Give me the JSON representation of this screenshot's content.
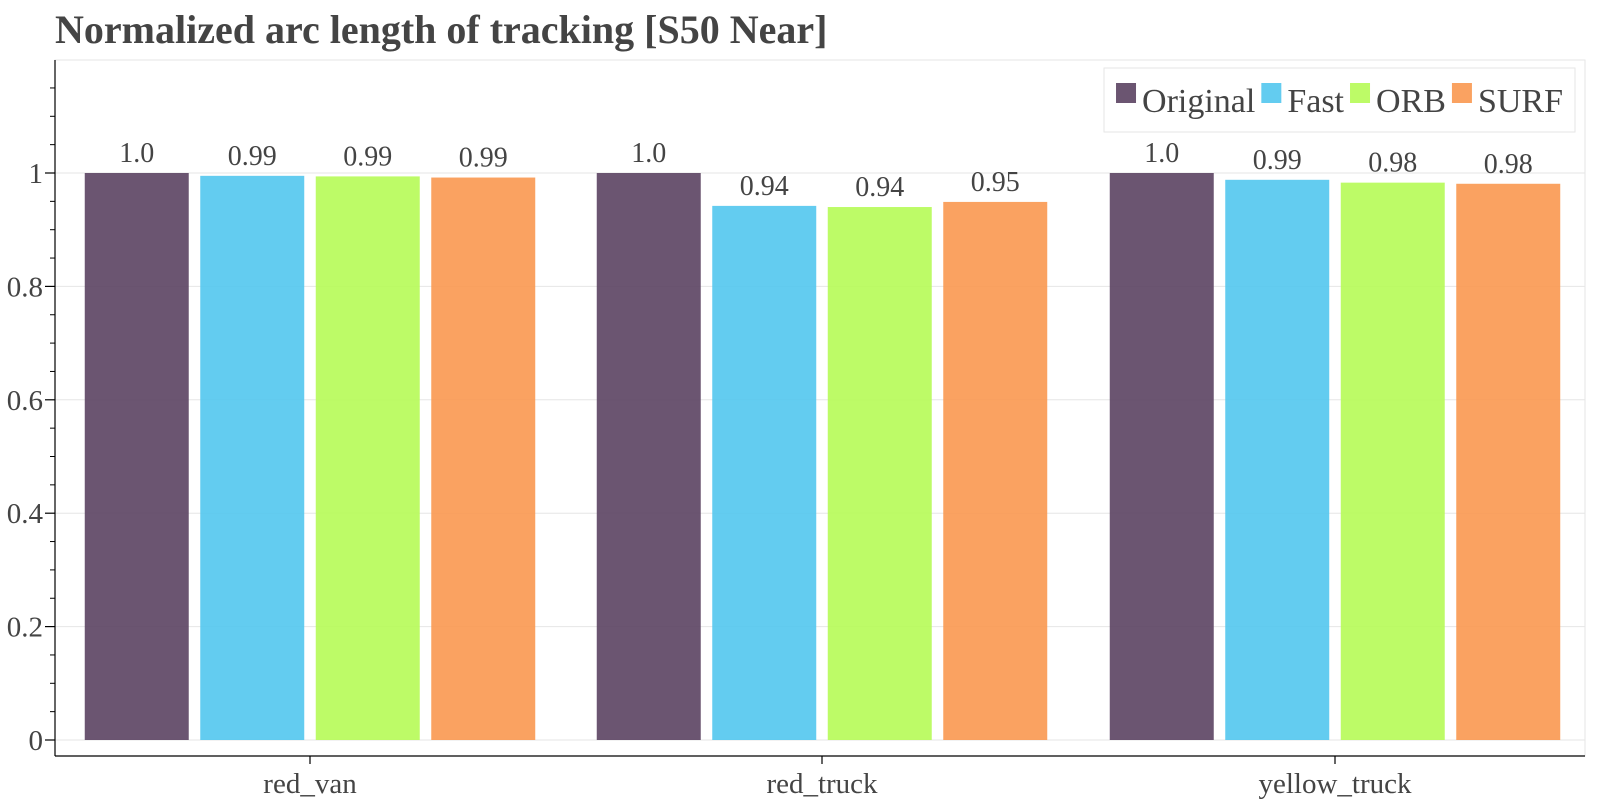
{
  "chart_data": {
    "type": "bar",
    "title": "Normalized arc length of tracking [S50 Near]",
    "xlabel": "",
    "ylabel": "",
    "categories": [
      "red_van",
      "red_truck",
      "yellow_truck"
    ],
    "series": [
      {
        "name": "Original",
        "color": "#5b4262",
        "values": [
          1.0,
          1.0,
          1.0
        ],
        "labels": [
          "1.0",
          "1.0",
          "1.0"
        ]
      },
      {
        "name": "Fast",
        "color": "#52c6ee",
        "values": [
          0.995,
          0.942,
          0.988
        ],
        "labels": [
          "0.99",
          "0.94",
          "0.99"
        ]
      },
      {
        "name": "ORB",
        "color": "#b6fb57",
        "values": [
          0.994,
          0.94,
          0.983
        ],
        "labels": [
          "0.99",
          "0.94",
          "0.98"
        ]
      },
      {
        "name": "SURF",
        "color": "#fa9850",
        "values": [
          0.992,
          0.949,
          0.981
        ],
        "labels": [
          "0.99",
          "0.95",
          "0.98"
        ]
      }
    ],
    "ylim": [
      0,
      1.2
    ],
    "yticks": [
      0,
      0.2,
      0.4,
      0.6,
      0.8,
      1
    ],
    "ytick_labels": [
      "0",
      "0.2",
      "0.4",
      "0.6",
      "0.8",
      "1"
    ],
    "grid": true,
    "legend_position": "top-right",
    "bar_opacity": 0.9
  }
}
